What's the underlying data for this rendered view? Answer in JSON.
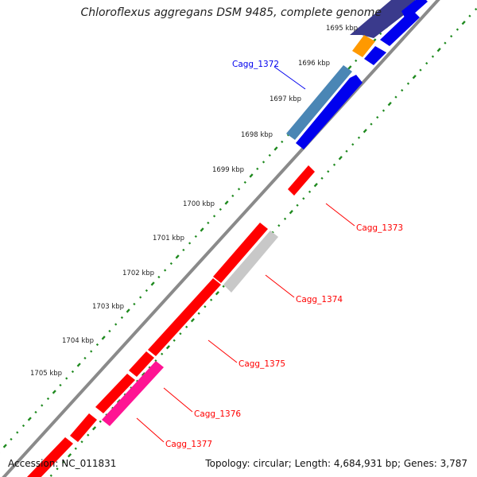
{
  "title": "Chloroflexus aggregans DSM 9485, complete genome",
  "footer": {
    "accession": "Accession: NC_011831",
    "topology": "Topology: circular; Length: 4,684,931 bp; Genes: 3,787"
  },
  "colors": {
    "backbone": "#8c8c8c",
    "ticks": "#1f8a1f",
    "red": "#ff0000",
    "blue": "#0000ee",
    "steel": "#4a86b5",
    "orange": "#ff9900",
    "gray": "#c8c8c8",
    "pink": "#ff1493",
    "navy": "#3a3a8c"
  },
  "kbp_labels": [
    "1695 kbp",
    "1696 kbp",
    "1697 kbp",
    "1698 kbp",
    "1699 kbp",
    "1700 kbp",
    "1701 kbp",
    "1702 kbp",
    "1703 kbp",
    "1704 kbp",
    "1705 kbp"
  ],
  "genes": [
    {
      "tag": "Cagg_1372",
      "color": "blue"
    },
    {
      "tag": "Cagg_1373",
      "color": "red"
    },
    {
      "tag": "Cagg_1374",
      "color": "red"
    },
    {
      "tag": "Cagg_1375",
      "color": "red"
    },
    {
      "tag": "Cagg_1376",
      "color": "red"
    },
    {
      "tag": "Cagg_1377",
      "color": "red"
    }
  ]
}
